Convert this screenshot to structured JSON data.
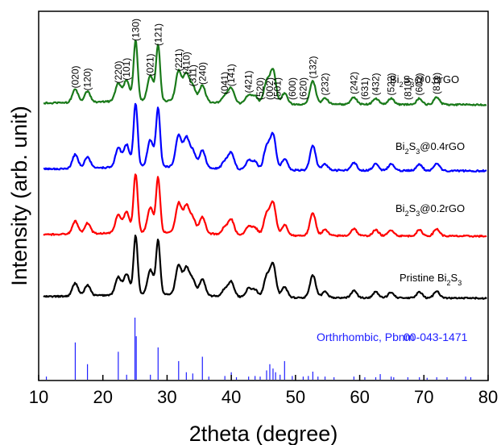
{
  "chart_data": {
    "type": "line",
    "xlabel": "2theta (degree)",
    "ylabel": "Intensity (arb. unit)",
    "xlim": [
      10,
      80
    ],
    "xticks": [
      10,
      20,
      30,
      40,
      50,
      60,
      70,
      80
    ],
    "grid": false,
    "series": [
      {
        "name": "Pristine Bi2S3",
        "label_main": "Pristine Bi",
        "label_sub": "2",
        "label_tail": "S",
        "label_sub2": "3",
        "color": "#000000"
      },
      {
        "name": "Bi2S3@0.2rGO",
        "label_main": "Bi",
        "label_sub": "2",
        "label_tail": "S",
        "label_sub2": "3",
        "label_end": "@0.2rGO",
        "color": "#ff0000"
      },
      {
        "name": "Bi2S3@0.4rGO",
        "label_main": "Bi",
        "label_sub": "2",
        "label_tail": "S",
        "label_sub2": "3",
        "label_end": "@0.4rGO",
        "color": "#0000ff"
      },
      {
        "name": "Bi2S3@0.8rGO",
        "label_main": "Bi",
        "label_sub": "2",
        "label_tail": "S",
        "label_sub2": "3",
        "label_end": "@0.8rGO",
        "color": "#1a7a1a"
      }
    ],
    "peaks": [
      {
        "x": 15.7,
        "h": 0.22
      },
      {
        "x": 17.6,
        "h": 0.18
      },
      {
        "x": 22.4,
        "h": 0.3
      },
      {
        "x": 23.7,
        "h": 0.35
      },
      {
        "x": 25.1,
        "h": 1.0
      },
      {
        "x": 27.4,
        "h": 0.42
      },
      {
        "x": 28.6,
        "h": 0.92
      },
      {
        "x": 31.8,
        "h": 0.5
      },
      {
        "x": 33.0,
        "h": 0.45
      },
      {
        "x": 34.0,
        "h": 0.25
      },
      {
        "x": 35.5,
        "h": 0.28
      },
      {
        "x": 39.0,
        "h": 0.12
      },
      {
        "x": 40.0,
        "h": 0.25
      },
      {
        "x": 42.7,
        "h": 0.14
      },
      {
        "x": 43.7,
        "h": 0.12
      },
      {
        "x": 45.5,
        "h": 0.35
      },
      {
        "x": 46.5,
        "h": 0.55
      },
      {
        "x": 48.3,
        "h": 0.18
      },
      {
        "x": 52.7,
        "h": 0.38
      },
      {
        "x": 54.6,
        "h": 0.1
      },
      {
        "x": 59.1,
        "h": 0.12
      },
      {
        "x": 62.5,
        "h": 0.1
      },
      {
        "x": 64.9,
        "h": 0.1
      },
      {
        "x": 69.3,
        "h": 0.1
      },
      {
        "x": 72.0,
        "h": 0.12
      }
    ],
    "miller_indices": [
      {
        "x": 15.7,
        "label": "(020)"
      },
      {
        "x": 17.6,
        "label": "(120)"
      },
      {
        "x": 22.4,
        "label": "(220)"
      },
      {
        "x": 23.7,
        "label": "(101)"
      },
      {
        "x": 25.1,
        "label": "(130)"
      },
      {
        "x": 27.4,
        "label": "(021)"
      },
      {
        "x": 28.6,
        "label": "(121)"
      },
      {
        "x": 31.8,
        "label": "(221)"
      },
      {
        "x": 33.0,
        "label": "(410)"
      },
      {
        "x": 34.0,
        "label": "(311)"
      },
      {
        "x": 35.5,
        "label": "(240)"
      },
      {
        "x": 39.0,
        "label": "(041)"
      },
      {
        "x": 40.0,
        "label": "(141)"
      },
      {
        "x": 42.7,
        "label": "(421)"
      },
      {
        "x": 44.5,
        "label": "(520)"
      },
      {
        "x": 46.0,
        "label": "(002)"
      },
      {
        "x": 47.2,
        "label": "(501)"
      },
      {
        "x": 49.5,
        "label": "(600)"
      },
      {
        "x": 51.2,
        "label": "(620)"
      },
      {
        "x": 52.7,
        "label": "(132)"
      },
      {
        "x": 54.6,
        "label": "(232)"
      },
      {
        "x": 59.1,
        "label": "(242)"
      },
      {
        "x": 60.8,
        "label": "(631)"
      },
      {
        "x": 62.5,
        "label": "(432)"
      },
      {
        "x": 64.9,
        "label": "(522)"
      },
      {
        "x": 67.5,
        "label": "(810)"
      },
      {
        "x": 69.3,
        "label": "(602)"
      },
      {
        "x": 72.0,
        "label": "(811)"
      }
    ],
    "reference": {
      "label": "Orthrhombic, Pbnm",
      "card": "00-043-1471",
      "color": "#2020ff",
      "lines": [
        {
          "x": 11.2,
          "h": 0.05
        },
        {
          "x": 15.7,
          "h": 0.6
        },
        {
          "x": 17.6,
          "h": 0.25
        },
        {
          "x": 22.4,
          "h": 0.45
        },
        {
          "x": 23.7,
          "h": 0.08
        },
        {
          "x": 25.0,
          "h": 1.0
        },
        {
          "x": 25.2,
          "h": 0.7
        },
        {
          "x": 27.4,
          "h": 0.08
        },
        {
          "x": 28.6,
          "h": 0.52
        },
        {
          "x": 31.8,
          "h": 0.3
        },
        {
          "x": 33.0,
          "h": 0.12
        },
        {
          "x": 34.0,
          "h": 0.1
        },
        {
          "x": 35.5,
          "h": 0.37
        },
        {
          "x": 36.5,
          "h": 0.05
        },
        {
          "x": 39.0,
          "h": 0.06
        },
        {
          "x": 40.0,
          "h": 0.12
        },
        {
          "x": 40.8,
          "h": 0.04
        },
        {
          "x": 42.7,
          "h": 0.05
        },
        {
          "x": 43.7,
          "h": 0.06
        },
        {
          "x": 44.5,
          "h": 0.05
        },
        {
          "x": 45.5,
          "h": 0.15
        },
        {
          "x": 46.0,
          "h": 0.25
        },
        {
          "x": 46.5,
          "h": 0.18
        },
        {
          "x": 46.9,
          "h": 0.12
        },
        {
          "x": 47.6,
          "h": 0.08
        },
        {
          "x": 48.3,
          "h": 0.3
        },
        {
          "x": 49.5,
          "h": 0.06
        },
        {
          "x": 51.2,
          "h": 0.05
        },
        {
          "x": 52.0,
          "h": 0.06
        },
        {
          "x": 52.7,
          "h": 0.13
        },
        {
          "x": 53.5,
          "h": 0.05
        },
        {
          "x": 54.6,
          "h": 0.05
        },
        {
          "x": 56.0,
          "h": 0.04
        },
        {
          "x": 59.1,
          "h": 0.05
        },
        {
          "x": 60.8,
          "h": 0.04
        },
        {
          "x": 62.5,
          "h": 0.04
        },
        {
          "x": 63.2,
          "h": 0.09
        },
        {
          "x": 64.9,
          "h": 0.05
        },
        {
          "x": 65.3,
          "h": 0.04
        },
        {
          "x": 67.5,
          "h": 0.04
        },
        {
          "x": 69.3,
          "h": 0.04
        },
        {
          "x": 70.5,
          "h": 0.03
        },
        {
          "x": 72.0,
          "h": 0.04
        },
        {
          "x": 73.6,
          "h": 0.04
        },
        {
          "x": 76.5,
          "h": 0.05
        },
        {
          "x": 77.3,
          "h": 0.04
        }
      ]
    }
  }
}
